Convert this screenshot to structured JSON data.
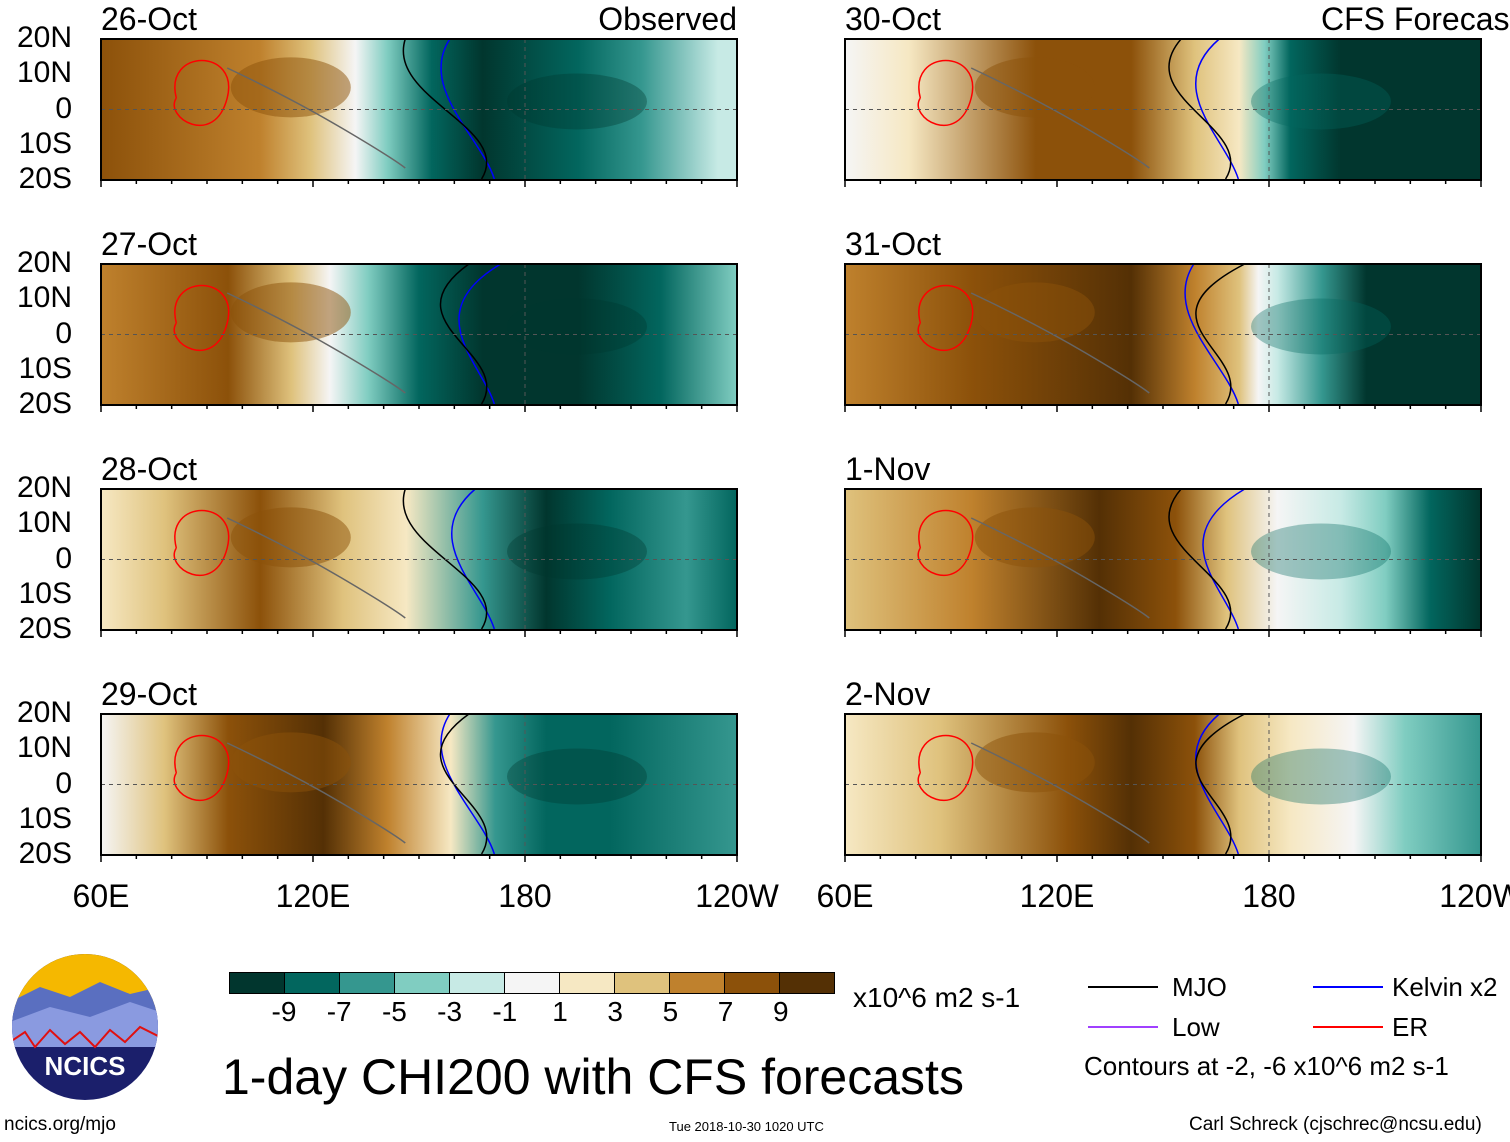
{
  "panels": [
    {
      "date": "26-Oct",
      "label": "Observed"
    },
    {
      "date": "30-Oct",
      "label": "CFS Forecast"
    },
    {
      "date": "27-Oct"
    },
    {
      "date": "31-Oct"
    },
    {
      "date": "28-Oct"
    },
    {
      "date": "1-Nov"
    },
    {
      "date": "29-Oct"
    },
    {
      "date": "2-Nov"
    }
  ],
  "lat_ticks": [
    "20N",
    "10N",
    "0",
    "10S",
    "20S"
  ],
  "lon_ticks": [
    "60E",
    "120E",
    "180",
    "120W"
  ],
  "colorbar": {
    "colors": [
      "#01362e",
      "#02665e",
      "#35978f",
      "#80cdc1",
      "#c7eae5",
      "#f5f5f5",
      "#f6e8c3",
      "#dfc27d",
      "#bf812d",
      "#8c510a",
      "#543005"
    ],
    "labels": [
      "-9",
      "-7",
      "-5",
      "-3",
      "-1",
      "1",
      "3",
      "5",
      "7",
      "9"
    ],
    "units": "x10^6 m2 s-1"
  },
  "title": "1-day CHI200 with CFS forecasts",
  "legend": {
    "items": [
      {
        "label": "MJO",
        "color": "#000000"
      },
      {
        "label": "Kelvin x2",
        "color": "#0000ff"
      },
      {
        "label": "Low",
        "color": "#a040ff"
      },
      {
        "label": "ER",
        "color": "#ff0000"
      }
    ],
    "contours": "Contours at -2, -6 x10^6 m2 s-1"
  },
  "logo": {
    "text": "NCICS"
  },
  "footer": {
    "url": "ncics.org/mjo",
    "timestamp": "Tue 2018-10-30 1020 UTC",
    "author": "Carl Schreck (cjschrec@ncsu.edu)"
  }
}
